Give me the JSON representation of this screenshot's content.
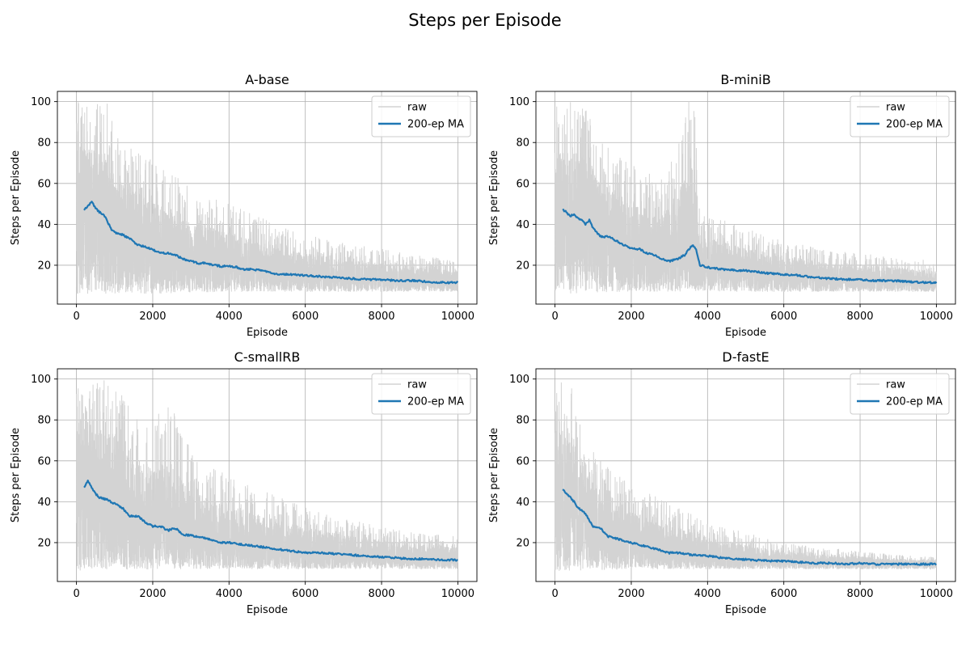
{
  "figure": {
    "title": "Steps per Episode"
  },
  "colors": {
    "raw": "#d3d3d3",
    "ma": "#1f77b4",
    "grid": "#b0b0b0",
    "axis": "#000000"
  },
  "chart_data": [
    {
      "type": "line",
      "title": "A-base",
      "xlabel": "Episode",
      "ylabel": "Steps per Episode",
      "xlim": [
        -500,
        10500
      ],
      "ylim": [
        1,
        105
      ],
      "xticks": [
        0,
        2000,
        4000,
        6000,
        8000,
        10000
      ],
      "yticks": [
        20,
        40,
        60,
        80,
        100
      ],
      "grid": true,
      "legend": {
        "position": "top-right",
        "entries": [
          "raw",
          "200-ep MA"
        ]
      },
      "series": [
        {
          "name": "raw",
          "style": "noisy band",
          "upper": [
            [
              0,
              100
            ],
            [
              800,
              100
            ],
            [
              1200,
              80
            ],
            [
              2000,
              72
            ],
            [
              3000,
              58
            ],
            [
              4000,
              50
            ],
            [
              5000,
              42
            ],
            [
              6000,
              35
            ],
            [
              7000,
              31
            ],
            [
              8000,
              28
            ],
            [
              9000,
              25
            ],
            [
              10000,
              22
            ]
          ],
          "lower": [
            [
              0,
              6
            ],
            [
              2000,
              6
            ],
            [
              4000,
              7
            ],
            [
              6000,
              7
            ],
            [
              8000,
              7
            ],
            [
              10000,
              7
            ]
          ]
        },
        {
          "name": "200-ep MA",
          "points": [
            [
              200,
              47
            ],
            [
              300,
              49
            ],
            [
              400,
              51
            ],
            [
              500,
              48
            ],
            [
              600,
              46
            ],
            [
              700,
              45
            ],
            [
              800,
              42
            ],
            [
              900,
              38
            ],
            [
              1000,
              36
            ],
            [
              1200,
              35
            ],
            [
              1400,
              33
            ],
            [
              1600,
              30
            ],
            [
              1800,
              29
            ],
            [
              2000,
              27.5
            ],
            [
              2200,
              26
            ],
            [
              2400,
              26
            ],
            [
              2600,
              25
            ],
            [
              2800,
              23
            ],
            [
              3000,
              22
            ],
            [
              3200,
              21
            ],
            [
              3400,
              21
            ],
            [
              3600,
              20
            ],
            [
              3800,
              19.5
            ],
            [
              4000,
              19.5
            ],
            [
              4200,
              19
            ],
            [
              4400,
              18
            ],
            [
              4600,
              18
            ],
            [
              4800,
              17.5
            ],
            [
              5000,
              17
            ],
            [
              5200,
              16
            ],
            [
              5400,
              15.5
            ],
            [
              5600,
              15.5
            ],
            [
              6000,
              15
            ],
            [
              6400,
              14.5
            ],
            [
              6800,
              14
            ],
            [
              7200,
              13.5
            ],
            [
              7600,
              13
            ],
            [
              8000,
              13
            ],
            [
              8400,
              12.5
            ],
            [
              8800,
              12.5
            ],
            [
              9200,
              12
            ],
            [
              9600,
              11.5
            ],
            [
              10000,
              11.5
            ]
          ]
        }
      ]
    },
    {
      "type": "line",
      "title": "B-miniB",
      "xlabel": "Episode",
      "ylabel": "Steps per Episode",
      "xlim": [
        -500,
        10500
      ],
      "ylim": [
        1,
        105
      ],
      "xticks": [
        0,
        2000,
        4000,
        6000,
        8000,
        10000
      ],
      "yticks": [
        20,
        40,
        60,
        80,
        100
      ],
      "grid": true,
      "legend": {
        "position": "top-right",
        "entries": [
          "raw",
          "200-ep MA"
        ]
      },
      "series": [
        {
          "name": "raw",
          "style": "noisy band",
          "upper": [
            [
              0,
              100
            ],
            [
              700,
              100
            ],
            [
              1200,
              82
            ],
            [
              2000,
              70
            ],
            [
              2800,
              62
            ],
            [
              3000,
              68
            ],
            [
              3500,
              100
            ],
            [
              3650,
              100
            ],
            [
              3800,
              45
            ],
            [
              4500,
              42
            ],
            [
              5000,
              38
            ],
            [
              6000,
              32
            ],
            [
              7000,
              28
            ],
            [
              8000,
              26
            ],
            [
              9000,
              24
            ],
            [
              10000,
              22
            ]
          ],
          "lower": [
            [
              0,
              6
            ],
            [
              2000,
              7
            ],
            [
              4000,
              7
            ],
            [
              6000,
              7
            ],
            [
              8000,
              7
            ],
            [
              10000,
              7
            ]
          ]
        },
        {
          "name": "200-ep MA",
          "points": [
            [
              200,
              47
            ],
            [
              300,
              46
            ],
            [
              400,
              44
            ],
            [
              500,
              45
            ],
            [
              600,
              43
            ],
            [
              700,
              42
            ],
            [
              800,
              40
            ],
            [
              900,
              42
            ],
            [
              1000,
              38
            ],
            [
              1100,
              36
            ],
            [
              1200,
              34
            ],
            [
              1400,
              34
            ],
            [
              1600,
              32
            ],
            [
              1800,
              30
            ],
            [
              2000,
              28
            ],
            [
              2200,
              28
            ],
            [
              2400,
              26
            ],
            [
              2600,
              25
            ],
            [
              2800,
              23
            ],
            [
              3000,
              22
            ],
            [
              3200,
              23
            ],
            [
              3400,
              25
            ],
            [
              3600,
              30
            ],
            [
              3700,
              28
            ],
            [
              3800,
              20
            ],
            [
              4000,
              19
            ],
            [
              4400,
              18
            ],
            [
              4800,
              17.5
            ],
            [
              5200,
              17
            ],
            [
              5600,
              16
            ],
            [
              6000,
              15.5
            ],
            [
              6400,
              15
            ],
            [
              6800,
              14
            ],
            [
              7200,
              13.5
            ],
            [
              7600,
              13
            ],
            [
              8000,
              13
            ],
            [
              8400,
              12.5
            ],
            [
              8800,
              12.5
            ],
            [
              9200,
              12
            ],
            [
              9600,
              11.5
            ],
            [
              10000,
              11.5
            ]
          ]
        }
      ]
    },
    {
      "type": "line",
      "title": "C-smallRB",
      "xlabel": "Episode",
      "ylabel": "Steps per Episode",
      "xlim": [
        -500,
        10500
      ],
      "ylim": [
        1,
        105
      ],
      "xticks": [
        0,
        2000,
        4000,
        6000,
        8000,
        10000
      ],
      "yticks": [
        20,
        40,
        60,
        80,
        100
      ],
      "grid": true,
      "legend": {
        "position": "top-right",
        "entries": [
          "raw",
          "200-ep MA"
        ]
      },
      "series": [
        {
          "name": "raw",
          "style": "noisy band",
          "upper": [
            [
              0,
              100
            ],
            [
              1000,
              100
            ],
            [
              1500,
              82
            ],
            [
              2000,
              80
            ],
            [
              2500,
              90
            ],
            [
              3000,
              65
            ],
            [
              4000,
              52
            ],
            [
              5000,
              45
            ],
            [
              6000,
              38
            ],
            [
              7000,
              32
            ],
            [
              8000,
              28
            ],
            [
              9000,
              25
            ],
            [
              10000,
              23
            ]
          ],
          "lower": [
            [
              0,
              6
            ],
            [
              2000,
              7
            ],
            [
              4000,
              7
            ],
            [
              6000,
              7
            ],
            [
              8000,
              7
            ],
            [
              10000,
              7
            ]
          ]
        },
        {
          "name": "200-ep MA",
          "points": [
            [
              200,
              47
            ],
            [
              300,
              50
            ],
            [
              400,
              47
            ],
            [
              500,
              44
            ],
            [
              600,
              42
            ],
            [
              800,
              41
            ],
            [
              1000,
              39
            ],
            [
              1200,
              37
            ],
            [
              1400,
              33
            ],
            [
              1600,
              33
            ],
            [
              1800,
              30
            ],
            [
              2000,
              28
            ],
            [
              2200,
              28
            ],
            [
              2400,
              26
            ],
            [
              2600,
              27
            ],
            [
              2800,
              24
            ],
            [
              3000,
              23.5
            ],
            [
              3200,
              23
            ],
            [
              3400,
              22
            ],
            [
              3600,
              21
            ],
            [
              3800,
              20
            ],
            [
              4000,
              20
            ],
            [
              4400,
              19
            ],
            [
              4800,
              18
            ],
            [
              5200,
              17
            ],
            [
              5600,
              16
            ],
            [
              6000,
              15
            ],
            [
              6400,
              15
            ],
            [
              6800,
              14.5
            ],
            [
              7200,
              14
            ],
            [
              7600,
              13.5
            ],
            [
              8000,
              13
            ],
            [
              8400,
              12.5
            ],
            [
              8800,
              12
            ],
            [
              9200,
              12
            ],
            [
              9600,
              11.5
            ],
            [
              10000,
              11.5
            ]
          ]
        }
      ]
    },
    {
      "type": "line",
      "title": "D-fastE",
      "xlabel": "Episode",
      "ylabel": "Steps per Episode",
      "xlim": [
        -500,
        10500
      ],
      "ylim": [
        1,
        105
      ],
      "xticks": [
        0,
        2000,
        4000,
        6000,
        8000,
        10000
      ],
      "yticks": [
        20,
        40,
        60,
        80,
        100
      ],
      "grid": true,
      "legend": {
        "position": "top-right",
        "entries": [
          "raw",
          "200-ep MA"
        ]
      },
      "series": [
        {
          "name": "raw",
          "style": "noisy band",
          "upper": [
            [
              0,
              100
            ],
            [
              400,
              100
            ],
            [
              600,
              90
            ],
            [
              1000,
              70
            ],
            [
              1500,
              55
            ],
            [
              2000,
              48
            ],
            [
              3000,
              40
            ],
            [
              4000,
              30
            ],
            [
              5000,
              25
            ],
            [
              6000,
              20
            ],
            [
              7000,
              18
            ],
            [
              8000,
              16
            ],
            [
              9000,
              14
            ],
            [
              10000,
              13
            ]
          ],
          "lower": [
            [
              0,
              6
            ],
            [
              2000,
              7
            ],
            [
              4000,
              7
            ],
            [
              6000,
              7
            ],
            [
              8000,
              7
            ],
            [
              10000,
              7
            ]
          ]
        },
        {
          "name": "200-ep MA",
          "points": [
            [
              200,
              46
            ],
            [
              300,
              44
            ],
            [
              400,
              42
            ],
            [
              500,
              40
            ],
            [
              600,
              37
            ],
            [
              700,
              36
            ],
            [
              800,
              34
            ],
            [
              900,
              31
            ],
            [
              1000,
              28
            ],
            [
              1200,
              27
            ],
            [
              1400,
              23
            ],
            [
              1600,
              22
            ],
            [
              1800,
              21
            ],
            [
              2000,
              20
            ],
            [
              2200,
              19
            ],
            [
              2400,
              18
            ],
            [
              2600,
              17
            ],
            [
              2800,
              16
            ],
            [
              3000,
              15
            ],
            [
              3200,
              15
            ],
            [
              3600,
              14
            ],
            [
              4000,
              13.5
            ],
            [
              4400,
              12.5
            ],
            [
              4800,
              12
            ],
            [
              5200,
              11.5
            ],
            [
              5600,
              11
            ],
            [
              6000,
              11
            ],
            [
              6400,
              10.5
            ],
            [
              6800,
              10
            ],
            [
              7200,
              10
            ],
            [
              7600,
              9.5
            ],
            [
              8000,
              10
            ],
            [
              8400,
              9.5
            ],
            [
              8800,
              9.5
            ],
            [
              9200,
              9.5
            ],
            [
              9600,
              9.5
            ],
            [
              10000,
              9.5
            ]
          ]
        }
      ]
    }
  ]
}
